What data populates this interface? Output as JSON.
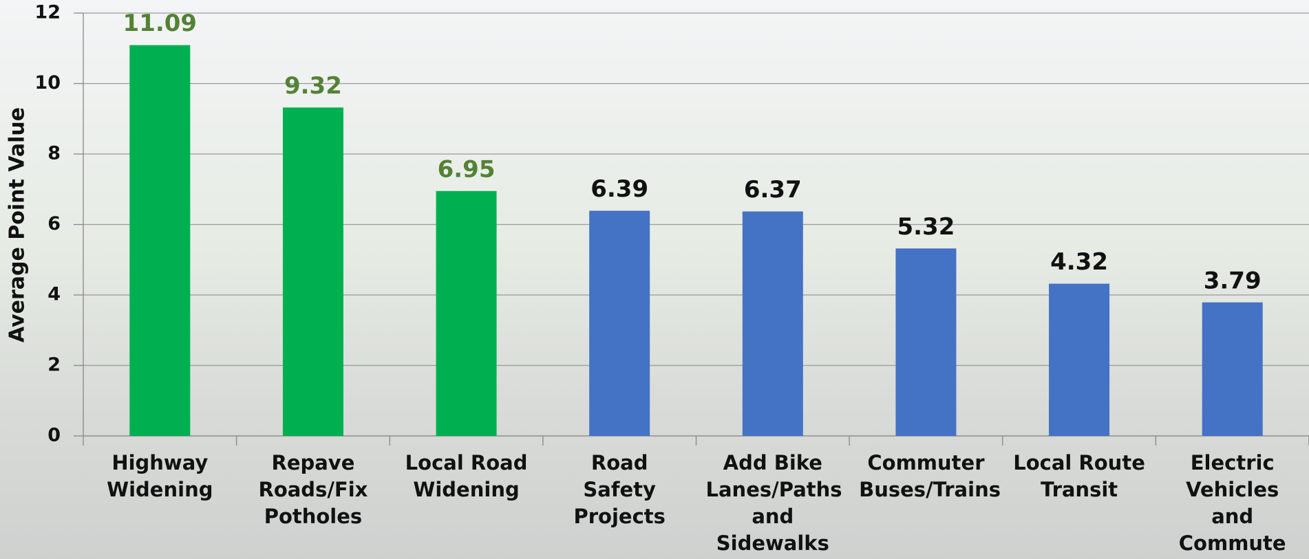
{
  "chart_data": {
    "type": "bar",
    "y_label": "Average Point Value",
    "categories": [
      "Highway Widening",
      "Repave Roads/Fix Potholes",
      "Local Road Widening",
      "Road Safety Projects",
      "Add Bike Lanes/Paths and Sidewalks",
      "Commuter Buses/Trains",
      "Local Route Transit",
      "Electric Vehicles and Commute Options"
    ],
    "values": [
      11.09,
      9.32,
      6.95,
      6.39,
      6.37,
      5.32,
      4.32,
      3.79
    ],
    "colors": [
      "#00b050",
      "#00b050",
      "#00b050",
      "#4472c4",
      "#4472c4",
      "#4472c4",
      "#4472c4",
      "#4472c4"
    ],
    "value_label_colors": [
      "#548235",
      "#548235",
      "#548235",
      "#111111",
      "#111111",
      "#111111",
      "#111111",
      "#111111"
    ],
    "ylim": [
      0,
      12
    ],
    "yticks": [
      0,
      2,
      4,
      6,
      8,
      10,
      12
    ],
    "grid": true
  }
}
